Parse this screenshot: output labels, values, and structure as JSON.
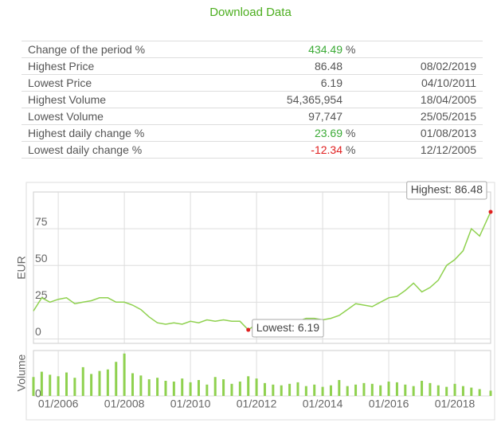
{
  "download_link": "Download Data",
  "table": {
    "rows": [
      {
        "label": "Change of the period %",
        "value": "434.49",
        "unit": "%",
        "color": "#3aaa35"
      },
      {
        "label": "Highest Price",
        "value": "86.48",
        "date": "08/02/2019"
      },
      {
        "label": "Lowest Price",
        "value": "6.19",
        "date": "04/10/2011"
      },
      {
        "label": "Highest Volume",
        "value": "54,365,954",
        "date": "18/04/2005"
      },
      {
        "label": "Lowest Volume",
        "value": "97,747",
        "date": "25/05/2015"
      },
      {
        "label": "Highest daily change %",
        "value": "23.69",
        "unit": "%",
        "date": "01/08/2013",
        "color": "#3aaa35"
      },
      {
        "label": "Lowest daily change %",
        "value": "-12.34",
        "unit": "%",
        "date": "12/12/2005",
        "color": "#e02020"
      }
    ]
  },
  "chart_data": {
    "type": "line",
    "y_label": "EUR",
    "color": "#8fd14f",
    "grid": true,
    "x": [
      "04/2005",
      "07/2005",
      "10/2005",
      "01/2006",
      "04/2006",
      "07/2006",
      "10/2006",
      "01/2007",
      "04/2007",
      "07/2007",
      "10/2007",
      "01/2008",
      "04/2008",
      "07/2008",
      "10/2008",
      "01/2009",
      "04/2009",
      "07/2009",
      "10/2009",
      "01/2010",
      "04/2010",
      "07/2010",
      "10/2010",
      "01/2011",
      "04/2011",
      "07/2011",
      "10/2011",
      "01/2012",
      "04/2012",
      "07/2012",
      "10/2012",
      "01/2013",
      "04/2013",
      "07/2013",
      "10/2013",
      "01/2014",
      "04/2014",
      "07/2014",
      "10/2014",
      "01/2015",
      "04/2015",
      "07/2015",
      "10/2015",
      "01/2016",
      "04/2016",
      "07/2016",
      "10/2016",
      "01/2017",
      "04/2017",
      "07/2017",
      "10/2017",
      "01/2018",
      "04/2018",
      "07/2018",
      "10/2018",
      "02/2019"
    ],
    "values": [
      19,
      28,
      25,
      27,
      28,
      24,
      25,
      26,
      28,
      28,
      25,
      25,
      23,
      20,
      15,
      11,
      10,
      11,
      10,
      12,
      11,
      13,
      12,
      13,
      12,
      12,
      6.19,
      10,
      11,
      10,
      11,
      12,
      12,
      14,
      14,
      13,
      14,
      16,
      20,
      24,
      23,
      22,
      25,
      28,
      29,
      33,
      38,
      32,
      35,
      40,
      50,
      54,
      60,
      75,
      70,
      86.48
    ],
    "xlim": [
      "04/2005",
      "02/2019"
    ],
    "xticks": [
      "01/2006",
      "01/2008",
      "01/2010",
      "01/2012",
      "01/2014",
      "01/2016",
      "01/2018"
    ],
    "ylim": [
      -3,
      100
    ],
    "yticks": [
      0,
      25,
      50,
      75
    ],
    "annotations": [
      {
        "text": "Highest: 86.48",
        "x": "02/2019",
        "y": 86.48,
        "marker_color": "#e02020"
      },
      {
        "text": "Lowest: 6.19",
        "x": "10/2011",
        "y": 6.19,
        "marker_color": "#e02020"
      }
    ],
    "volume": {
      "type": "bar",
      "y_label": "Volume",
      "color": "#8fd14f",
      "values": [
        2500000,
        3200000,
        2800000,
        2600000,
        3100000,
        2400000,
        3800000,
        2900000,
        3300000,
        3500000,
        4500000,
        5600000,
        3000000,
        2700000,
        2200000,
        2400000,
        2000000,
        1900000,
        2300000,
        1800000,
        2100000,
        1500000,
        2500000,
        2200000,
        1600000,
        1900000,
        2600000,
        2300000,
        1700000,
        1500000,
        1400000,
        1600000,
        1800000,
        1300000,
        1500000,
        1200000,
        1400000,
        2100000,
        1300000,
        1500000,
        1700000,
        1600000,
        1400000,
        1900000,
        1800000,
        1500000,
        1300000,
        2000000,
        1700000,
        1400000,
        1200000,
        1600000,
        1300000,
        1100000,
        900000,
        700000
      ],
      "ylim": [
        0,
        6000000
      ],
      "yticks": [
        0
      ]
    }
  }
}
